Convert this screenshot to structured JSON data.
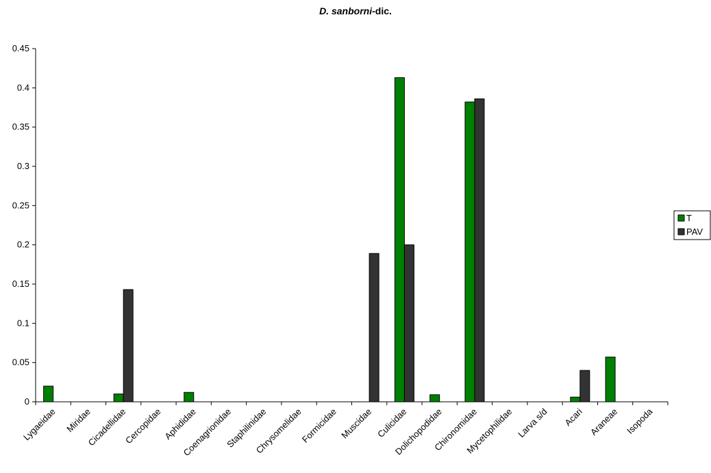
{
  "chart_data": {
    "type": "bar",
    "title_species": "D. sanborni",
    "title_suffix": "-dic.",
    "xlabel": "",
    "ylabel": "",
    "ylim": [
      0,
      0.45
    ],
    "yticks": [
      "0",
      "0.05",
      "0.1",
      "0.15",
      "0.2",
      "0.25",
      "0.3",
      "0.35",
      "0.4",
      "0.45"
    ],
    "grid": false,
    "legend_position": "right",
    "categories": [
      "Lygaeidae",
      "Miridae",
      "Cicadellidae",
      "Cercopidae",
      "Aphididae",
      "Coenagrionidae",
      "Staphilinidae",
      "Chrysomelidae",
      "Formicidae",
      "Muscidae",
      "Culicidae",
      "Dolichopodidae",
      "Chironomidae",
      "Mycetophilidae",
      "Larva s/d",
      "Acari",
      "Araneae",
      "Isopoda"
    ],
    "series": [
      {
        "name": "T",
        "color": "#008000",
        "values": [
          0.02,
          0,
          0.01,
          0,
          0.012,
          0,
          0,
          0,
          0,
          0,
          0.413,
          0.009,
          0.382,
          0,
          0,
          0.006,
          0.057,
          0
        ]
      },
      {
        "name": "PAV",
        "color": "#333333",
        "values": [
          0,
          0,
          0.143,
          0,
          0,
          0,
          0,
          0,
          0,
          0.189,
          0.2,
          0,
          0.386,
          0,
          0,
          0.04,
          0,
          0
        ]
      }
    ]
  }
}
